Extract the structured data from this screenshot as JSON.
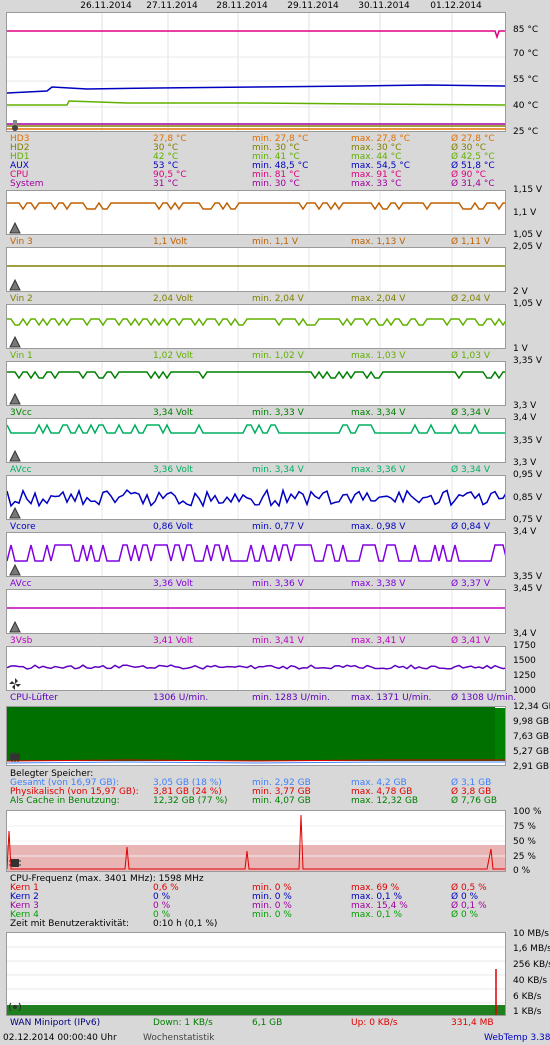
{
  "dates": [
    "26.11.2014",
    "27.11.2014",
    "28.11.2014",
    "29.11.2014",
    "30.11.2014",
    "01.12.2014"
  ],
  "temp": {
    "axis": [
      "85 °C",
      "70 °C",
      "55 °C",
      "40 °C",
      "25 °C"
    ],
    "rows": [
      {
        "name": "HD3",
        "value": "27,8 °C",
        "min": "min. 27,8 °C",
        "max": "max. 27,8 °C",
        "avg": "Ø 27,8 °C",
        "color": "#e07000"
      },
      {
        "name": "HD2",
        "value": "30 °C",
        "min": "min. 30 °C",
        "max": "max. 30 °C",
        "avg": "Ø 30 °C",
        "color": "#808000"
      },
      {
        "name": "HD1",
        "value": "42 °C",
        "min": "min. 41 °C",
        "max": "max. 44 °C",
        "avg": "Ø 42,5 °C",
        "color": "#60b000"
      },
      {
        "name": "AUX",
        "value": "53 °C",
        "min": "min. 48,5 °C",
        "max": "max. 54,5 °C",
        "avg": "Ø 51,8 °C",
        "color": "#0000c0"
      },
      {
        "name": "CPU",
        "value": "90,5 °C",
        "min": "min. 81 °C",
        "max": "max. 91 °C",
        "avg": "Ø 90 °C",
        "color": "#e00080"
      },
      {
        "name": "System",
        "value": "31 °C",
        "min": "min. 30 °C",
        "max": "max. 33 °C",
        "avg": "Ø 31,4 °C",
        "color": "#a000a0"
      }
    ]
  },
  "volt": [
    {
      "name": "Vin 3",
      "value": "1,1 Volt",
      "min": "min. 1,1 V",
      "max": "max. 1,13 V",
      "avg": "Ø 1,11 V",
      "color": "#c06000",
      "axis": [
        "1,15 V",
        "1,1 V",
        "1,05 V"
      ]
    },
    {
      "name": "Vin 2",
      "value": "2,04 Volt",
      "min": "min. 2,04 V",
      "max": "max. 2,04 V",
      "avg": "Ø 2,04 V",
      "color": "#808000",
      "axis": [
        "2,05 V",
        "2 V"
      ]
    },
    {
      "name": "Vin 1",
      "value": "1,02 Volt",
      "min": "min. 1,02 V",
      "max": "max. 1,03 V",
      "avg": "Ø 1,03 V",
      "color": "#60b000",
      "axis": [
        "1,05 V",
        "1 V"
      ]
    },
    {
      "name": "3Vcc",
      "value": "3,34 Volt",
      "min": "min. 3,33 V",
      "max": "max. 3,34 V",
      "avg": "Ø 3,34 V",
      "color": "#008000",
      "axis": [
        "3,35 V",
        "3,3 V"
      ]
    },
    {
      "name": "AVcc",
      "value": "3,36 Volt",
      "min": "min. 3,34 V",
      "max": "max. 3,36 V",
      "avg": "Ø 3,34 V",
      "color": "#00b060",
      "axis": [
        "3,4 V",
        "3,35 V",
        "3,3 V"
      ]
    },
    {
      "name": "Vcore",
      "value": "0,86 Volt",
      "min": "min. 0,77 V",
      "max": "max. 0,98 V",
      "avg": "Ø 0,84 V",
      "color": "#0000c0",
      "axis": [
        "0,95 V",
        "0,85 V",
        "0,75 V"
      ]
    },
    {
      "name": "AVcc",
      "value": "3,36 Volt",
      "min": "min. 3,36 V",
      "max": "max. 3,38 V",
      "avg": "Ø 3,37 V",
      "color": "#8000e0",
      "axis": [
        "3,4 V",
        "3,35 V"
      ]
    },
    {
      "name": "3Vsb",
      "value": "3,41 Volt",
      "min": "min. 3,41 V",
      "max": "max. 3,41 V",
      "avg": "Ø 3,41 V",
      "color": "#c000c0",
      "axis": [
        "3,45 V",
        "3,4 V"
      ]
    }
  ],
  "fan": {
    "name": "CPU-Lüfter",
    "value": "1306 U/min.",
    "min": "min. 1283 U/min.",
    "max": "max. 1371 U/min.",
    "avg": "Ø 1308 U/min.",
    "color": "#6000c0",
    "axis": [
      "1750",
      "1500",
      "1250",
      "1000"
    ]
  },
  "mem": {
    "axis": [
      "12,34 GB",
      "9,98 GB",
      "7,63 GB",
      "5,27 GB",
      "2,91 GB"
    ],
    "title": "Belegter Speicher:",
    "rows": [
      {
        "name": "Gesamt (von 16,97 GB):",
        "value": "3,05 GB (18 %)",
        "min": "min. 2,92 GB",
        "max": "max. 4,2 GB",
        "avg": "Ø 3,1 GB",
        "color": "#4080ff"
      },
      {
        "name": "Physikalisch (von 15,97 GB):",
        "value": "3,81 GB (24 %)",
        "min": "min. 3,77 GB",
        "max": "max. 4,78 GB",
        "avg": "Ø 3,8 GB",
        "color": "#e00000"
      },
      {
        "name": "Als Cache in Benutzung:",
        "value": "12,32 GB (77 %)",
        "min": "min. 4,07 GB",
        "max": "max. 12,32 GB",
        "avg": "Ø 7,76 GB",
        "color": "#008000"
      }
    ]
  },
  "cpu": {
    "axis": [
      "100 %",
      "75 %",
      "50 %",
      "25 %",
      "0 %"
    ],
    "title": "CPU-Frequenz (max. 3401 MHz): 1598 MHz",
    "rows": [
      {
        "name": "Kern 1",
        "value": "0,6 %",
        "min": "min. 0 %",
        "max": "max. 69 %",
        "avg": "Ø 0,5 %",
        "color": "#e00000"
      },
      {
        "name": "Kern 2",
        "value": "0 %",
        "min": "min. 0 %",
        "max": "max. 0,1 %",
        "avg": "Ø 0 %",
        "color": "#0000c0"
      },
      {
        "name": "Kern 3",
        "value": "0 %",
        "min": "min. 0 %",
        "max": "max. 15,4 %",
        "avg": "Ø 0,1 %",
        "color": "#a000a0"
      },
      {
        "name": "Kern 4",
        "value": "0 %",
        "min": "min. 0 %",
        "max": "max. 0,1 %",
        "avg": "Ø 0 %",
        "color": "#00a000"
      }
    ],
    "activity_label": "Zeit mit Benutzeraktivität:",
    "activity_value": "0:10 h (0,1 %)"
  },
  "net": {
    "axis": [
      "10 MB/s",
      "1,6 MB/s",
      "256 KB/s",
      "40 KB/s",
      "6 KB/s",
      "1 KB/s"
    ],
    "name": "WAN Miniport (IPv6)",
    "down": "Down: 1 KB/s",
    "down_total": "6,1 GB",
    "up": "Up: 0 KB/s",
    "up_total": "331,4 MB"
  },
  "footer": {
    "timestamp": "02.12.2014 00:00:40 Uhr",
    "mode": "Wochenstatistik",
    "app": "WebTemp 3.38"
  }
}
